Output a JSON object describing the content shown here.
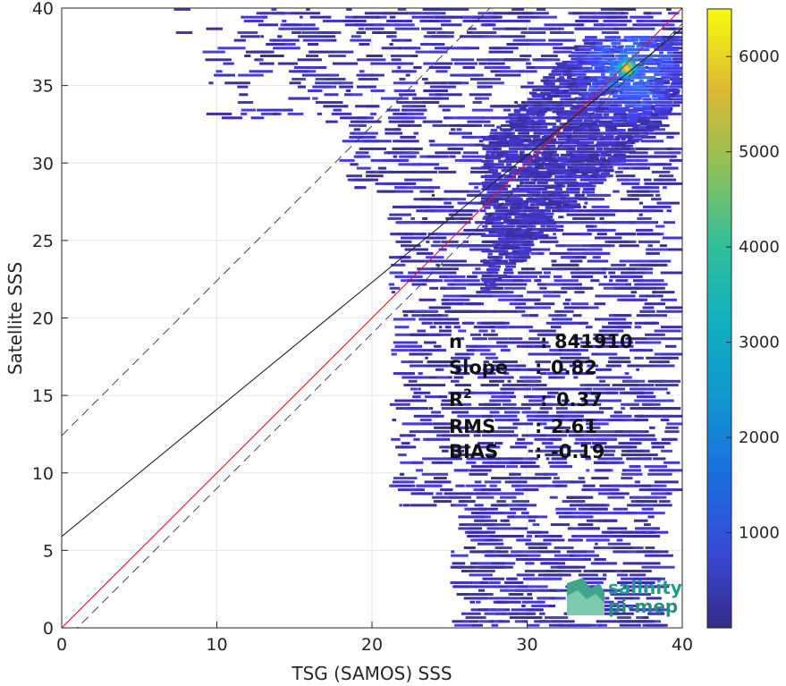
{
  "chart_data": {
    "type": "heatmap",
    "xlabel": "TSG (SAMOS) SSS",
    "ylabel": "Satellite SSS",
    "xlim": [
      0,
      40
    ],
    "ylim": [
      0,
      40
    ],
    "x_ticks": [
      0,
      10,
      20,
      30,
      40
    ],
    "y_ticks": [
      0,
      5,
      10,
      15,
      20,
      25,
      30,
      35,
      40
    ],
    "grid": true,
    "colorbar": {
      "range": [
        0,
        6500
      ],
      "ticks": [
        1000,
        2000,
        3000,
        4000,
        5000,
        6000
      ],
      "colormap": "parula",
      "placement": "right"
    },
    "density_peak": {
      "x": 36.3,
      "y": 36.2,
      "count": 6400
    },
    "lines": [
      {
        "name": "1:1",
        "slope": 1,
        "intercept": 0,
        "color": "#e8141c",
        "style": "solid"
      },
      {
        "name": "regression",
        "slope": 0.82,
        "intercept": 5.9,
        "color": "#222222",
        "style": "solid"
      },
      {
        "name": "upper bound",
        "slope": 1,
        "intercept": 12.4,
        "color": "#333333",
        "style": "dashed"
      },
      {
        "name": "lower bound",
        "slope": 1,
        "intercept": -1.0,
        "color": "#333333",
        "style": "dashed"
      }
    ],
    "stats": [
      {
        "label": "n",
        "sep": ":",
        "value": "841910"
      },
      {
        "label": "Slope",
        "sep": ":",
        "value": "0.82"
      },
      {
        "label": "R",
        "sup": "2",
        "sep": ":",
        "value": "0.37"
      },
      {
        "label": "RMS",
        "sep": ":",
        "value": "2.61"
      },
      {
        "label": "BIAS",
        "sep": ":",
        "value": "-0.19"
      }
    ]
  },
  "logo": {
    "line1": "salinity",
    "line2": "pi-mep"
  }
}
